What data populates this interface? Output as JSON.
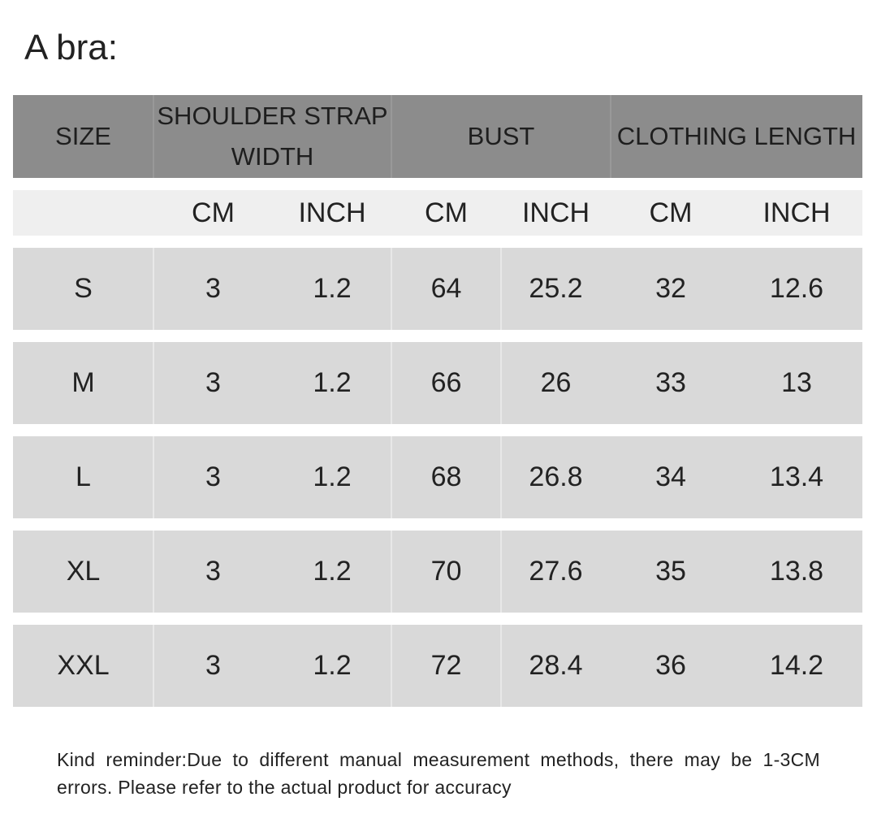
{
  "title": "A bra:",
  "table": {
    "header": [
      "SIZE",
      "SHOULDER STRAP WIDTH",
      "BUST",
      "CLOTHING LENGTH"
    ],
    "units": [
      "CM",
      "INCH",
      "CM",
      "INCH",
      "CM",
      "INCH"
    ],
    "rows": [
      [
        "S",
        3,
        1.2,
        64,
        25.2,
        32,
        12.6
      ],
      [
        "M",
        3,
        1.2,
        66,
        26,
        33,
        13
      ],
      [
        "L",
        3,
        1.2,
        68,
        26.8,
        34,
        13.4
      ],
      [
        "XL",
        3,
        1.2,
        70,
        27.6,
        35,
        13.8
      ],
      [
        "XXL",
        3,
        1.2,
        72,
        28.4,
        36,
        14.2
      ]
    ]
  },
  "note": "Kind reminder:Due to different manual measurement methods, there may be 1-3CM errors. Please refer to the actual product for accuracy"
}
